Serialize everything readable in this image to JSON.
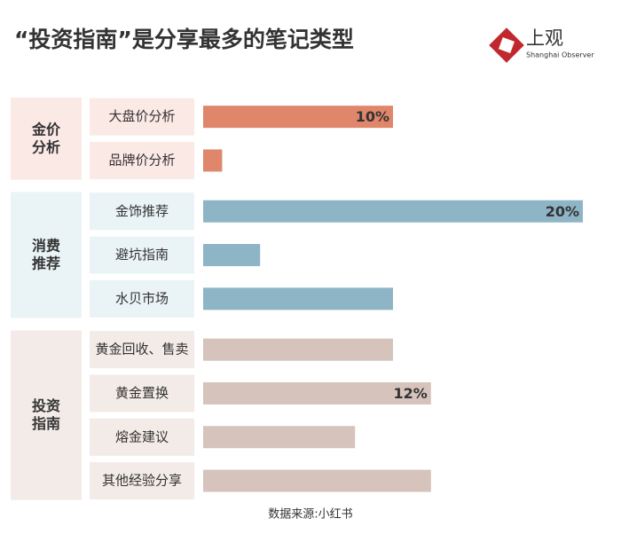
{
  "logo": {
    "name": "上观",
    "subtitle": "Shanghai Observer"
  },
  "chart_data": {
    "type": "bar",
    "title": "“投资指南”是分享最多的笔记类型",
    "source": "数据来源:小红书",
    "xlim": [
      0,
      20
    ],
    "groups": [
      {
        "name": "金价\n分析",
        "color": "#e0866b",
        "background": "#fbe9e6",
        "categories": [
          "大盘价分析",
          "品牌价分析"
        ],
        "values": [
          10,
          1
        ],
        "value_labels": [
          "10%",
          null
        ]
      },
      {
        "name": "消费\n推荐",
        "color": "#8db5c6",
        "background": "#eaf3f6",
        "categories": [
          "金饰推荐",
          "避坑指南",
          "水贝市场"
        ],
        "values": [
          20,
          3,
          10
        ],
        "value_labels": [
          "20%",
          null,
          null
        ]
      },
      {
        "name": "投资\n指南",
        "color": "#d5c3bc",
        "background": "#f3ebe8",
        "categories": [
          "黄金回收、售卖",
          "黄金置换",
          "熔金建议",
          "其他经验分享"
        ],
        "values": [
          10,
          12,
          8,
          12
        ],
        "value_labels": [
          null,
          "12%",
          null,
          null
        ]
      }
    ]
  }
}
